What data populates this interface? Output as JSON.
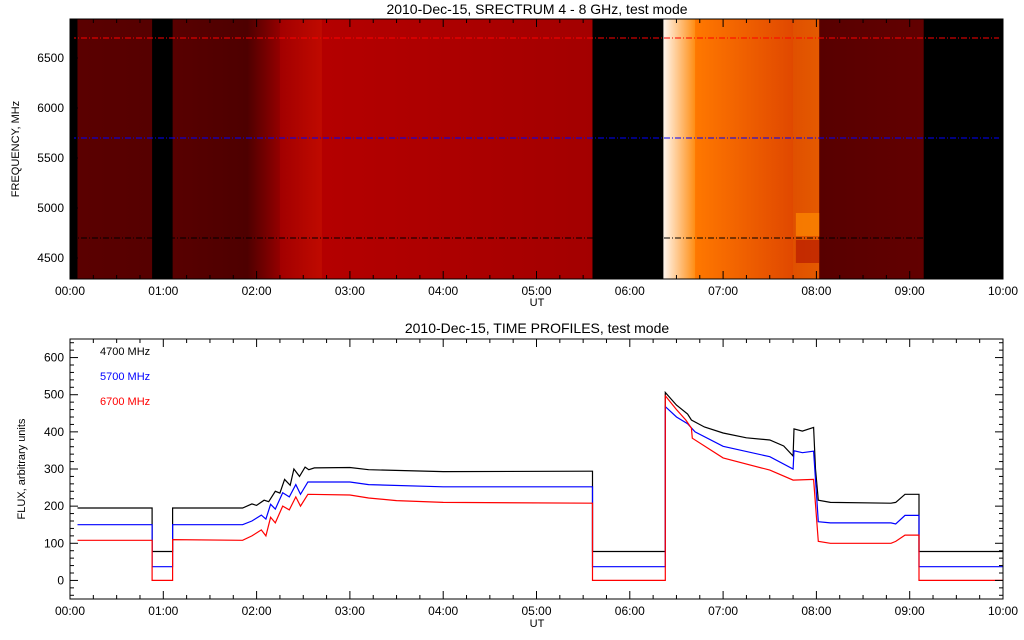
{
  "chart_data": [
    {
      "type": "heatmap",
      "title": "2010-Dec-15,  SRECTRUM 4 - 8 GHz,  test mode",
      "xlabel": "UT",
      "ylabel": "FREQUENCY, MHz",
      "xlim_hours": [
        0,
        10
      ],
      "ylim": [
        4290,
        6890
      ],
      "xticks": [
        "00:00",
        "01:00",
        "02:00",
        "03:00",
        "04:00",
        "05:00",
        "06:00",
        "07:00",
        "08:00",
        "09:00",
        "10:00"
      ],
      "yticks": [
        4500,
        5000,
        5500,
        6000,
        6500
      ],
      "ytick_labels": [
        "4500",
        "5000",
        "5500",
        "6000",
        "6500"
      ],
      "marker_lines": [
        {
          "freq": 6700,
          "color": "#ff0000"
        },
        {
          "freq": 5700,
          "color": "#0000ff"
        },
        {
          "freq": 4700,
          "color": "#000000"
        }
      ],
      "segments": [
        {
          "t0": 0.0,
          "t1": 0.08,
          "c0": "#000000",
          "c1": "#000000"
        },
        {
          "t0": 0.08,
          "t1": 0.88,
          "c0": "#5a0000",
          "c1": "#560000"
        },
        {
          "t0": 0.88,
          "t1": 1.1,
          "c0": "#000000",
          "c1": "#000000"
        },
        {
          "t0": 1.1,
          "t1": 1.9,
          "c0": "#580000",
          "c1": "#4e0000"
        },
        {
          "t0": 1.9,
          "t1": 2.25,
          "c0": "#4e0000",
          "c1": "#940000"
        },
        {
          "t0": 2.25,
          "t1": 2.7,
          "c0": "#a20000",
          "c1": "#c00a00"
        },
        {
          "t0": 2.7,
          "t1": 5.6,
          "c0": "#b40000",
          "c1": "#a30000"
        },
        {
          "t0": 5.6,
          "t1": 6.36,
          "c0": "#000000",
          "c1": "#000000"
        },
        {
          "t0": 6.36,
          "t1": 6.7,
          "c0": "#fff6ee",
          "c1": "#ff8c10"
        },
        {
          "t0": 6.7,
          "t1": 7.75,
          "c0": "#ff7800",
          "c1": "#e04800"
        },
        {
          "t0": 7.75,
          "t1": 8.03,
          "c0": "#e05000",
          "c1": "#e45a00"
        },
        {
          "t0": 8.03,
          "t1": 9.15,
          "c0": "#580000",
          "c1": "#620000"
        },
        {
          "t0": 9.15,
          "t1": 10.0,
          "c0": "#000000",
          "c1": "#000000"
        }
      ]
    },
    {
      "type": "line",
      "title": "2010-Dec-15,  TIME PROFILES,  test mode",
      "xlabel": "UT",
      "ylabel": "FLUX, arbitrary units",
      "xlim_hours": [
        0,
        10
      ],
      "ylim": [
        -50,
        650
      ],
      "xticks": [
        "00:00",
        "01:00",
        "02:00",
        "03:00",
        "04:00",
        "05:00",
        "06:00",
        "07:00",
        "08:00",
        "09:00",
        "10:00"
      ],
      "yticks": [
        0,
        100,
        200,
        300,
        400,
        500,
        600
      ],
      "ytick_labels": [
        "0",
        "100",
        "200",
        "300",
        "400",
        "500",
        "600"
      ],
      "legend_placement": "top-left",
      "series": [
        {
          "name": "4700 MHz",
          "color": "#000000",
          "points": [
            [
              0.08,
              195
            ],
            [
              0.88,
              195
            ],
            [
              0.88,
              78
            ],
            [
              1.1,
              78
            ],
            [
              1.1,
              195
            ],
            [
              1.85,
              195
            ],
            [
              1.95,
              206
            ],
            [
              2.0,
              202
            ],
            [
              2.08,
              216
            ],
            [
              2.13,
              212
            ],
            [
              2.2,
              240
            ],
            [
              2.25,
              235
            ],
            [
              2.3,
              272
            ],
            [
              2.36,
              256
            ],
            [
              2.4,
              300
            ],
            [
              2.46,
              280
            ],
            [
              2.52,
              305
            ],
            [
              2.56,
              298
            ],
            [
              2.62,
              303
            ],
            [
              3.0,
              304
            ],
            [
              3.2,
              298
            ],
            [
              4.0,
              293
            ],
            [
              5.58,
              294
            ],
            [
              5.6,
              294
            ],
            [
              5.6,
              78
            ],
            [
              6.38,
              78
            ],
            [
              6.38,
              506
            ],
            [
              6.5,
              472
            ],
            [
              6.62,
              448
            ],
            [
              6.66,
              432
            ],
            [
              6.8,
              413
            ],
            [
              7.0,
              397
            ],
            [
              7.25,
              384
            ],
            [
              7.5,
              378
            ],
            [
              7.65,
              362
            ],
            [
              7.75,
              335
            ],
            [
              7.76,
              408
            ],
            [
              7.85,
              402
            ],
            [
              7.97,
              412
            ],
            [
              7.99,
              300
            ],
            [
              8.02,
              216
            ],
            [
              8.15,
              210
            ],
            [
              8.8,
              208
            ],
            [
              8.85,
              210
            ],
            [
              8.95,
              232
            ],
            [
              9.1,
              232
            ],
            [
              9.1,
              78
            ],
            [
              10.0,
              78
            ]
          ]
        },
        {
          "name": "5700 MHz",
          "color": "#0000ff",
          "points": [
            [
              0.08,
              150
            ],
            [
              0.88,
              150
            ],
            [
              0.88,
              37
            ],
            [
              1.1,
              37
            ],
            [
              1.1,
              150
            ],
            [
              1.85,
              150
            ],
            [
              1.95,
              160
            ],
            [
              2.05,
              176
            ],
            [
              2.1,
              165
            ],
            [
              2.15,
              205
            ],
            [
              2.2,
              192
            ],
            [
              2.28,
              236
            ],
            [
              2.35,
              225
            ],
            [
              2.42,
              258
            ],
            [
              2.47,
              232
            ],
            [
              2.55,
              265
            ],
            [
              2.6,
              265
            ],
            [
              3.0,
              265
            ],
            [
              3.2,
              258
            ],
            [
              4.0,
              252
            ],
            [
              5.6,
              252
            ],
            [
              5.6,
              37
            ],
            [
              6.38,
              37
            ],
            [
              6.38,
              468
            ],
            [
              6.5,
              440
            ],
            [
              6.62,
              422
            ],
            [
              6.7,
              400
            ],
            [
              7.0,
              361
            ],
            [
              7.5,
              333
            ],
            [
              7.75,
              300
            ],
            [
              7.76,
              349
            ],
            [
              7.85,
              344
            ],
            [
              7.97,
              348
            ],
            [
              8.02,
              158
            ],
            [
              8.15,
              155
            ],
            [
              8.8,
              155
            ],
            [
              8.85,
              152
            ],
            [
              8.95,
              175
            ],
            [
              9.1,
              175
            ],
            [
              9.1,
              37
            ],
            [
              10.0,
              37
            ]
          ]
        },
        {
          "name": "6700 MHz",
          "color": "#ff0000",
          "points": [
            [
              0.08,
              108
            ],
            [
              0.88,
              108
            ],
            [
              0.88,
              0
            ],
            [
              1.1,
              0
            ],
            [
              1.1,
              110
            ],
            [
              1.85,
              108
            ],
            [
              1.95,
              120
            ],
            [
              2.05,
              136
            ],
            [
              2.1,
              120
            ],
            [
              2.15,
              170
            ],
            [
              2.2,
              155
            ],
            [
              2.28,
              200
            ],
            [
              2.35,
              190
            ],
            [
              2.42,
              225
            ],
            [
              2.47,
              200
            ],
            [
              2.55,
              232
            ],
            [
              3.0,
              230
            ],
            [
              3.2,
              222
            ],
            [
              3.5,
              215
            ],
            [
              4.0,
              210
            ],
            [
              5.6,
              208
            ],
            [
              5.6,
              0
            ],
            [
              6.38,
              0
            ],
            [
              6.38,
              497
            ],
            [
              6.5,
              460
            ],
            [
              6.6,
              432
            ],
            [
              6.66,
              410
            ],
            [
              6.67,
              383
            ],
            [
              7.0,
              330
            ],
            [
              7.5,
              297
            ],
            [
              7.75,
              270
            ],
            [
              7.97,
              272
            ],
            [
              8.02,
              105
            ],
            [
              8.15,
              100
            ],
            [
              8.8,
              100
            ],
            [
              8.85,
              105
            ],
            [
              8.95,
              122
            ],
            [
              9.1,
              122
            ],
            [
              9.1,
              0
            ],
            [
              10.0,
              0
            ]
          ]
        }
      ]
    }
  ]
}
